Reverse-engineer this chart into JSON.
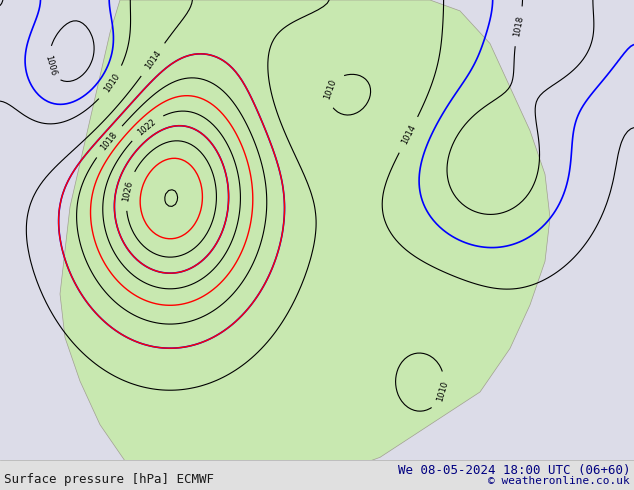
{
  "title_left": "Surface pressure [hPa] ECMWF",
  "title_right": "We 08-05-2024 18:00 UTC (06+60)",
  "copyright": "© weatheronline.co.uk",
  "bg_color": "#d8d8d8",
  "land_color": "#c8e8b0",
  "sea_color": "#e8e8f0",
  "fig_width": 6.34,
  "fig_height": 4.9,
  "dpi": 100,
  "title_fontsize": 9,
  "copyright_fontsize": 8,
  "title_color": "#000080",
  "copyright_color": "#000080"
}
